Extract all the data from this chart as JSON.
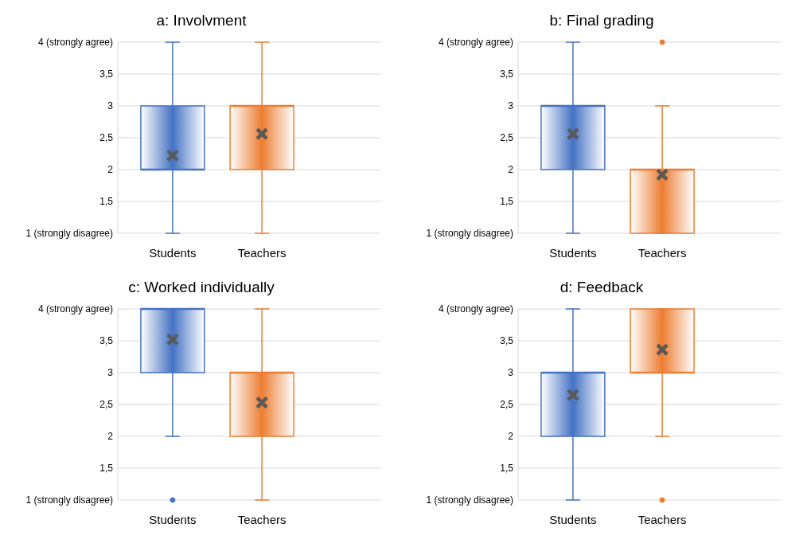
{
  "chart_data": [
    {
      "type": "box",
      "title": "a: Involvment",
      "categories": [
        "Students",
        "Teachers"
      ],
      "colors": [
        "#4472c4",
        "#ed7d31"
      ],
      "ylim": [
        1,
        4
      ],
      "yticks": [
        {
          "value": 1,
          "label": "1 (strongly disagree)"
        },
        {
          "value": 1.5,
          "label": "1,5"
        },
        {
          "value": 2,
          "label": "2"
        },
        {
          "value": 2.5,
          "label": "2,5"
        },
        {
          "value": 3,
          "label": "3"
        },
        {
          "value": 3.5,
          "label": "3,5"
        },
        {
          "value": 4,
          "label": "4 (strongly agree)"
        }
      ],
      "grid": "y",
      "boxes": [
        {
          "low": 1,
          "q1": 2,
          "median": 2,
          "q3": 3,
          "high": 4,
          "mean": 2.22
        },
        {
          "low": 1,
          "q1": 2,
          "median": 3,
          "q3": 3,
          "high": 4,
          "mean": 2.56
        }
      ]
    },
    {
      "type": "box",
      "title": "b: Final grading",
      "categories": [
        "Students",
        "Teachers"
      ],
      "colors": [
        "#4472c4",
        "#ed7d31"
      ],
      "ylim": [
        1,
        4
      ],
      "yticks": [
        {
          "value": 1,
          "label": "1 (strongly disagree)"
        },
        {
          "value": 1.5,
          "label": "1,5"
        },
        {
          "value": 2,
          "label": "2"
        },
        {
          "value": 2.5,
          "label": "2,5"
        },
        {
          "value": 3,
          "label": "3"
        },
        {
          "value": 3.5,
          "label": "3,5"
        },
        {
          "value": 4,
          "label": "4 (strongly agree)"
        }
      ],
      "grid": "y",
      "boxes": [
        {
          "low": 1,
          "q1": 2,
          "median": 3,
          "q3": 3,
          "high": 4,
          "mean": 2.56
        },
        {
          "low": 1,
          "q1": 1,
          "median": 2,
          "q3": 2,
          "high": 3,
          "mean": 1.92,
          "outliers": [
            4
          ]
        }
      ]
    },
    {
      "type": "box",
      "title": "c: Worked individually",
      "categories": [
        "Students",
        "Teachers"
      ],
      "colors": [
        "#4472c4",
        "#ed7d31"
      ],
      "ylim": [
        1,
        4
      ],
      "yticks": [
        {
          "value": 1,
          "label": "1 (strongly disagree)"
        },
        {
          "value": 1.5,
          "label": "1,5"
        },
        {
          "value": 2,
          "label": "2"
        },
        {
          "value": 2.5,
          "label": "2,5"
        },
        {
          "value": 3,
          "label": "3"
        },
        {
          "value": 3.5,
          "label": "3,5"
        },
        {
          "value": 4,
          "label": "4 (strongly agree)"
        }
      ],
      "grid": "y",
      "boxes": [
        {
          "low": 2,
          "q1": 3,
          "median": 4,
          "q3": 4,
          "high": 4,
          "mean": 3.52,
          "outliers": [
            1
          ]
        },
        {
          "low": 1,
          "q1": 2,
          "median": 3,
          "q3": 3,
          "high": 4,
          "mean": 2.53
        }
      ]
    },
    {
      "type": "box",
      "title": "d: Feedback",
      "categories": [
        "Students",
        "Teachers"
      ],
      "colors": [
        "#4472c4",
        "#ed7d31"
      ],
      "ylim": [
        1,
        4
      ],
      "yticks": [
        {
          "value": 1,
          "label": "1 (strongly disagree)"
        },
        {
          "value": 1.5,
          "label": "1,5"
        },
        {
          "value": 2,
          "label": "2"
        },
        {
          "value": 2.5,
          "label": "2,5"
        },
        {
          "value": 3,
          "label": "3"
        },
        {
          "value": 3.5,
          "label": "3,5"
        },
        {
          "value": 4,
          "label": "4 (strongly agree)"
        }
      ],
      "grid": "y",
      "boxes": [
        {
          "low": 1,
          "q1": 2,
          "median": 3,
          "q3": 3,
          "high": 4,
          "mean": 2.65
        },
        {
          "low": 2,
          "q1": 3,
          "median": 3,
          "q3": 4,
          "high": 4,
          "mean": 3.36,
          "outliers": [
            1
          ]
        }
      ]
    }
  ]
}
